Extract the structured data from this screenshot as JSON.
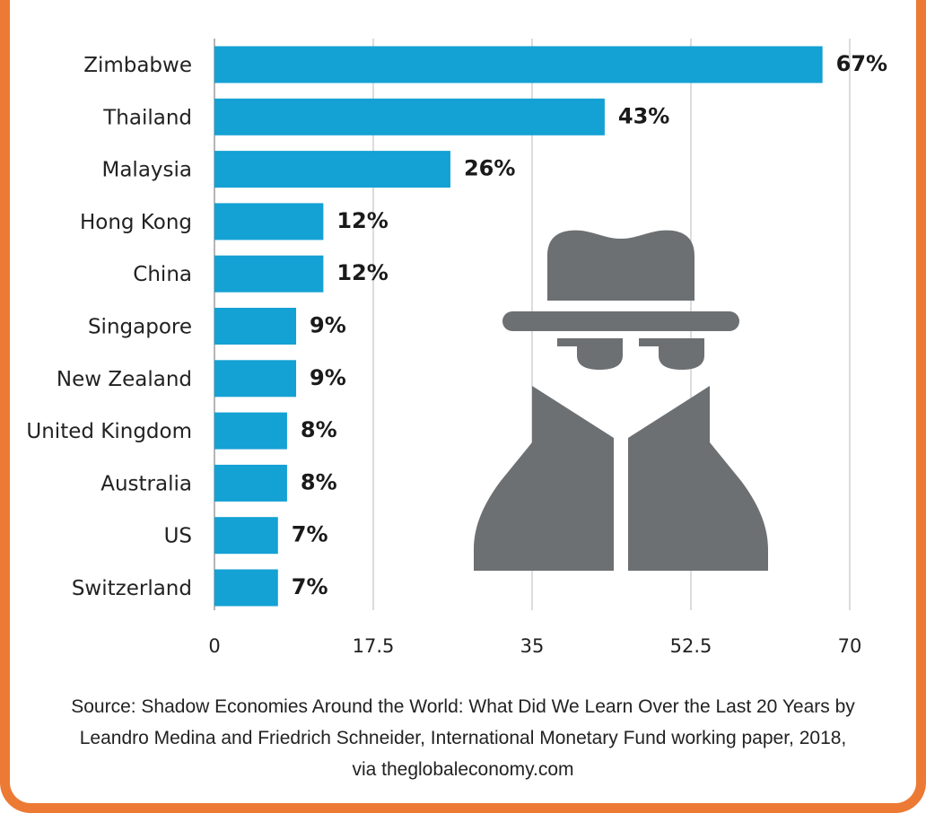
{
  "colors": {
    "bar": "#14a1d4",
    "grid": "#d0d0d0",
    "icon": "#6d7072",
    "border": "#ec7a34"
  },
  "icon": "spy-icon",
  "chart_data": {
    "type": "bar",
    "orientation": "horizontal",
    "categories": [
      "Zimbabwe",
      "Thailand",
      "Malaysia",
      "Hong Kong",
      "China",
      "Singapore",
      "New Zealand",
      "United Kingdom",
      "Australia",
      "US",
      "Switzerland"
    ],
    "values": [
      67,
      43,
      26,
      12,
      12,
      9,
      9,
      8,
      8,
      7,
      7
    ],
    "value_labels": [
      "67%",
      "43%",
      "26%",
      "12%",
      "12%",
      "9%",
      "9%",
      "8%",
      "8%",
      "7%",
      "7%"
    ],
    "xticks": [
      "0",
      "17.5",
      "35",
      "52.5",
      "70"
    ],
    "xlim": [
      0,
      70
    ],
    "grid": true
  },
  "source": {
    "line1": "Source: Shadow Economies Around the World: What Did We Learn Over the Last 20 Years by",
    "line2": "Leandro Medina and Friedrich Schneider, International Monetary Fund working paper, 2018,",
    "line3": "via theglobaleconomy.com"
  }
}
